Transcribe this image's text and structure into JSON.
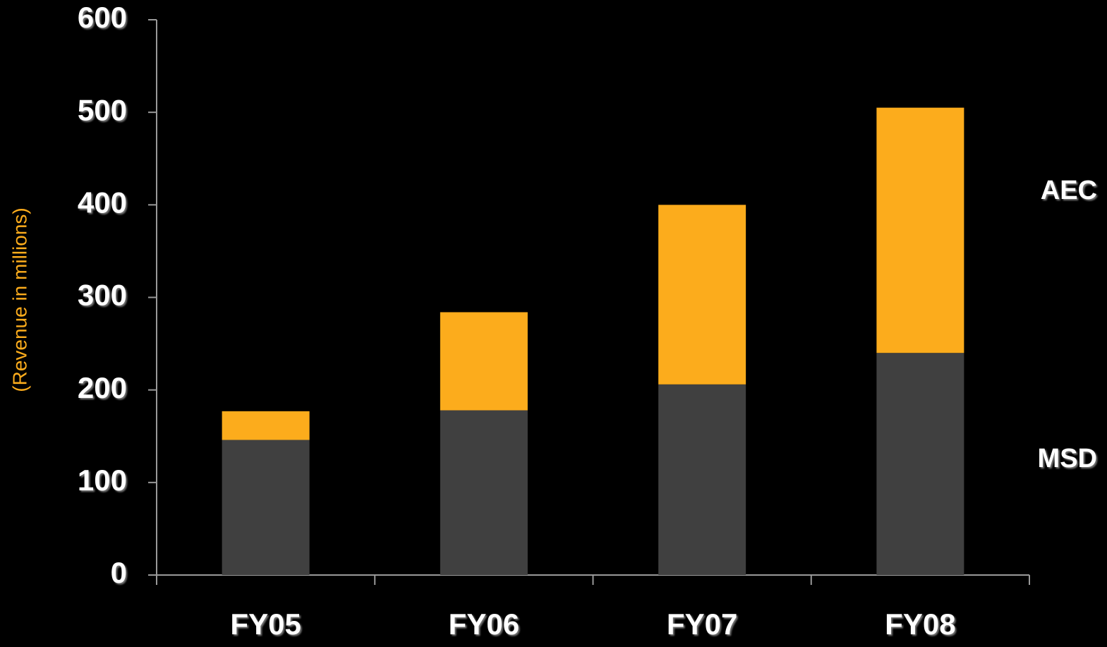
{
  "chart_data": {
    "type": "stacked_bar",
    "y_label": "(Revenue  in millions)",
    "categories": [
      "FY05",
      "FY06",
      "FY07",
      "FY08"
    ],
    "series": [
      {
        "name": "MSD",
        "color": "#404040",
        "values": [
          146,
          178,
          206,
          240
        ]
      },
      {
        "name": "AEC",
        "color": "#fcac1c",
        "values": [
          31,
          106,
          194,
          265
        ]
      }
    ],
    "ylim": [
      0,
      600
    ],
    "yticks": [
      0,
      100,
      200,
      300,
      400,
      500,
      600
    ],
    "grid": false
  }
}
